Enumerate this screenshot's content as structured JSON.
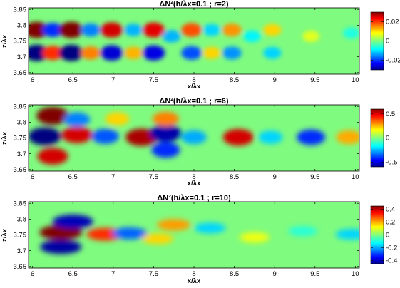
{
  "chart_data": [
    {
      "type": "heatmap",
      "title": "ΔN²(h/λx=0.1 ; r=2)",
      "xlabel": "x/λx",
      "ylabel": "z/λx",
      "xlim": [
        5.95,
        10.05
      ],
      "ylim": [
        3.645,
        3.855
      ],
      "x_ticks": [
        6,
        6.5,
        7,
        7.5,
        8,
        8.5,
        9,
        9.5,
        10
      ],
      "y_ticks": [
        3.65,
        3.7,
        3.75,
        3.8,
        3.85
      ],
      "colorbar_ticks": [
        0.02,
        0,
        -0.02
      ],
      "colorbar_range": [
        -0.03,
        0.03
      ],
      "colormap": "jet",
      "features": [
        {
          "x": 6.05,
          "z": 3.785,
          "value": 0.03
        },
        {
          "x": 6.05,
          "z": 3.712,
          "value": -0.03
        },
        {
          "x": 6.25,
          "z": 3.785,
          "value": -0.02
        },
        {
          "x": 6.25,
          "z": 3.712,
          "value": 0.02
        },
        {
          "x": 6.48,
          "z": 3.785,
          "value": 0.03
        },
        {
          "x": 6.48,
          "z": 3.712,
          "value": -0.03
        },
        {
          "x": 6.72,
          "z": 3.785,
          "value": -0.015
        },
        {
          "x": 6.72,
          "z": 3.712,
          "value": 0.015
        },
        {
          "x": 6.98,
          "z": 3.785,
          "value": 0.025
        },
        {
          "x": 6.98,
          "z": 3.712,
          "value": -0.025
        },
        {
          "x": 7.25,
          "z": 3.785,
          "value": -0.012
        },
        {
          "x": 7.25,
          "z": 3.712,
          "value": 0.012
        },
        {
          "x": 7.5,
          "z": 3.785,
          "value": 0.024
        },
        {
          "x": 7.5,
          "z": 3.712,
          "value": -0.024
        },
        {
          "x": 7.72,
          "z": 3.765,
          "value": -0.012
        },
        {
          "x": 7.97,
          "z": 3.785,
          "value": 0.018
        },
        {
          "x": 7.97,
          "z": 3.712,
          "value": -0.018
        },
        {
          "x": 8.22,
          "z": 3.785,
          "value": -0.01
        },
        {
          "x": 8.22,
          "z": 3.712,
          "value": 0.01
        },
        {
          "x": 8.47,
          "z": 3.785,
          "value": 0.014
        },
        {
          "x": 8.47,
          "z": 3.712,
          "value": -0.014
        },
        {
          "x": 8.72,
          "z": 3.765,
          "value": -0.008
        },
        {
          "x": 8.97,
          "z": 3.785,
          "value": 0.01
        },
        {
          "x": 8.97,
          "z": 3.712,
          "value": -0.01
        },
        {
          "x": 9.45,
          "z": 3.765,
          "value": 0.006
        },
        {
          "x": 9.95,
          "z": 3.775,
          "value": -0.006
        }
      ]
    },
    {
      "type": "heatmap",
      "title": "ΔN²(h/λx=0.1 ; r=6)",
      "xlabel": "x/λx",
      "ylabel": "z/λx",
      "xlim": [
        5.95,
        10.05
      ],
      "ylim": [
        3.645,
        3.855
      ],
      "x_ticks": [
        6,
        6.5,
        7,
        7.5,
        8,
        8.5,
        9,
        9.5,
        10
      ],
      "y_ticks": [
        3.65,
        3.7,
        3.75,
        3.8,
        3.85
      ],
      "colorbar_ticks": [
        0.5,
        0,
        -0.5
      ],
      "colorbar_range": [
        -0.6,
        0.6
      ],
      "colormap": "jet",
      "features": [
        {
          "x": 6.15,
          "z": 3.755,
          "value": -0.6
        },
        {
          "x": 6.25,
          "z": 3.82,
          "value": 0.6
        },
        {
          "x": 6.25,
          "z": 3.692,
          "value": 0.5
        },
        {
          "x": 6.55,
          "z": 3.76,
          "value": 0.5
        },
        {
          "x": 6.55,
          "z": 3.808,
          "value": -0.3
        },
        {
          "x": 6.9,
          "z": 3.755,
          "value": -0.35
        },
        {
          "x": 7.35,
          "z": 3.752,
          "value": 0.55
        },
        {
          "x": 7.05,
          "z": 3.81,
          "value": 0.2
        },
        {
          "x": 7.65,
          "z": 3.765,
          "value": -0.55
        },
        {
          "x": 7.65,
          "z": 3.712,
          "value": -0.4
        },
        {
          "x": 7.65,
          "z": 3.81,
          "value": 0.3
        },
        {
          "x": 8.0,
          "z": 3.752,
          "value": -0.25
        },
        {
          "x": 8.55,
          "z": 3.752,
          "value": 0.5
        },
        {
          "x": 8.95,
          "z": 3.752,
          "value": -0.2
        },
        {
          "x": 9.45,
          "z": 3.752,
          "value": -0.4
        },
        {
          "x": 9.92,
          "z": 3.752,
          "value": 0.25
        }
      ]
    },
    {
      "type": "heatmap",
      "title": "ΔN²(h/λx=0.1 ; r=10)",
      "xlabel": "x/λx",
      "ylabel": "z/λx",
      "xlim": [
        5.95,
        10.05
      ],
      "ylim": [
        3.645,
        3.855
      ],
      "x_ticks": [
        6,
        6.5,
        7,
        7.5,
        8,
        8.5,
        9,
        9.5,
        10
      ],
      "y_ticks": [
        3.65,
        3.7,
        3.75,
        3.8,
        3.85
      ],
      "colorbar_ticks": [
        0.4,
        0.2,
        0,
        -0.2,
        -0.4
      ],
      "colorbar_range": [
        -0.45,
        0.45
      ],
      "colormap": "jet",
      "features": [
        {
          "x": 6.35,
          "z": 3.758,
          "value": 0.45
        },
        {
          "x": 6.9,
          "z": 3.752,
          "value": 0.3
        },
        {
          "x": 6.5,
          "z": 3.792,
          "value": -0.4
        },
        {
          "x": 6.35,
          "z": 3.712,
          "value": -0.42
        },
        {
          "x": 7.2,
          "z": 3.755,
          "value": -0.25
        },
        {
          "x": 7.75,
          "z": 3.782,
          "value": 0.2
        },
        {
          "x": 7.55,
          "z": 3.738,
          "value": 0.15
        },
        {
          "x": 8.2,
          "z": 3.772,
          "value": -0.15
        },
        {
          "x": 8.75,
          "z": 3.742,
          "value": 0.1
        },
        {
          "x": 9.35,
          "z": 3.762,
          "value": -0.08
        },
        {
          "x": 9.95,
          "z": 3.752,
          "value": -0.15
        }
      ]
    }
  ]
}
